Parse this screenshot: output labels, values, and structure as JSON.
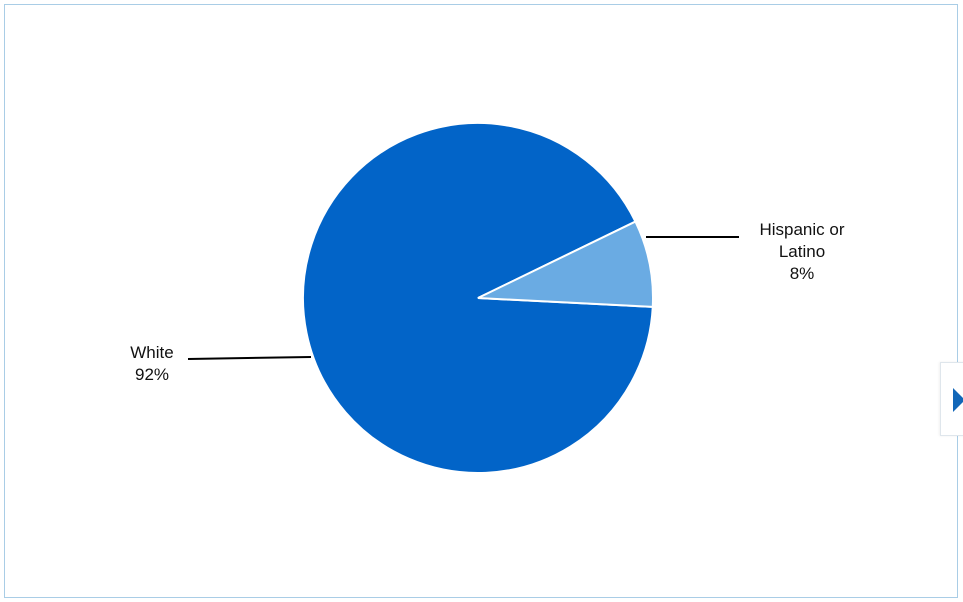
{
  "colors": {
    "border": "#a9cde6",
    "slice_white": "#0264c8",
    "slice_hispanic": "#6aabe3"
  },
  "navigation": {
    "next_icon": "triangle-right"
  },
  "chart_data": {
    "type": "pie",
    "slices": [
      {
        "key": "white",
        "name_lines": [
          "White"
        ],
        "percent_label": "92%",
        "value": 92
      },
      {
        "key": "hispanic",
        "name_lines": [
          "Hispanic or",
          "Latino"
        ],
        "percent_label": "8%",
        "value": 8
      }
    ]
  }
}
